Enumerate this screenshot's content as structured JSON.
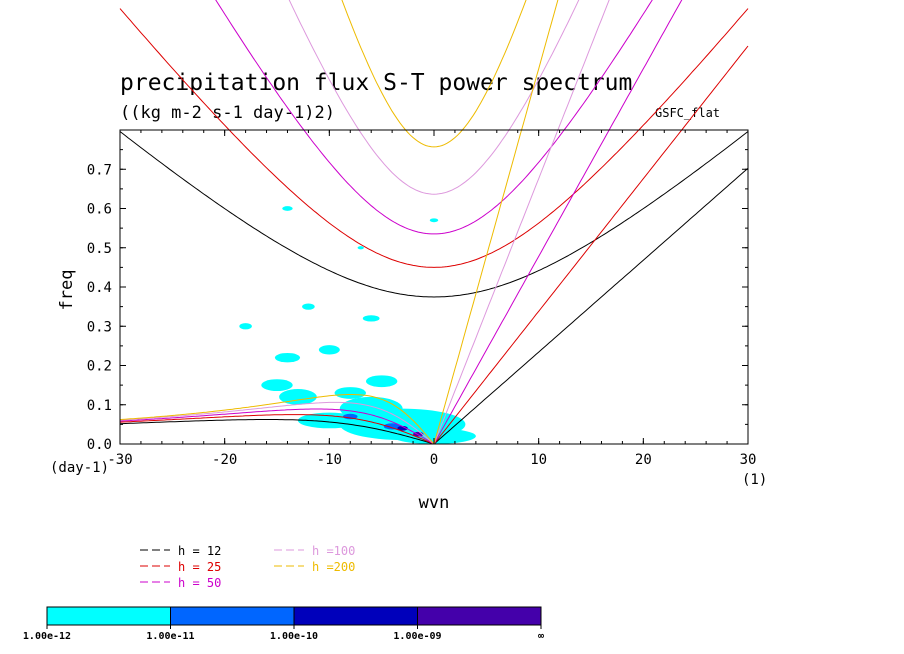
{
  "chart_data": {
    "type": "line",
    "title": "precipitation flux S-T power spectrum",
    "subtitle": "((kg m-2 s-1 day-1)2)",
    "source_label": "GSFC_flat",
    "xlabel": "wvn",
    "ylabel": "freq",
    "x_unit": "(1)",
    "y_unit": "(day-1)",
    "xlim": [
      -30,
      30
    ],
    "ylim": [
      0,
      0.7
    ],
    "x_ticks": [
      -30,
      -20,
      -10,
      0,
      10,
      20,
      30
    ],
    "x_tick_labels": [
      "-30",
      "-20",
      "-10",
      "0",
      "10",
      "20",
      "30"
    ],
    "y_ticks": [
      0,
      0.1,
      0.2,
      0.3,
      0.4,
      0.5,
      0.6,
      0.7
    ],
    "y_tick_labels": [
      "0.0",
      "0.1",
      "0.2",
      "0.3",
      "0.4",
      "0.5",
      "0.6",
      "0.7"
    ],
    "series": [
      {
        "name": "h = 12",
        "h": 12,
        "color": "#000000"
      },
      {
        "name": "h = 25",
        "h": 25,
        "color": "#dd0000"
      },
      {
        "name": "h = 50",
        "h": 50,
        "color": "#cc00cc"
      },
      {
        "name": "h =100",
        "h": 100,
        "color": "#dd99dd"
      },
      {
        "name": "h =200",
        "h": 200,
        "color": "#eebb00"
      }
    ],
    "colorbar": {
      "levels": [
        "1.00e-12",
        "1.00e-11",
        "1.00e-10",
        "1.00e-09",
        "∞"
      ],
      "colors": [
        "#00ffff",
        "#0066ff",
        "#0000bb",
        "#4400aa"
      ]
    },
    "contour_patches": [
      {
        "x": 0,
        "y": 0.02,
        "rx": 4,
        "ry": 0.02,
        "level": 0
      },
      {
        "x": -3,
        "y": 0.05,
        "rx": 6,
        "ry": 0.04,
        "level": 0
      },
      {
        "x": -6,
        "y": 0.09,
        "rx": 3,
        "ry": 0.03,
        "level": 0
      },
      {
        "x": -10,
        "y": 0.06,
        "rx": 3,
        "ry": 0.02,
        "level": 0
      },
      {
        "x": -13,
        "y": 0.12,
        "rx": 1.8,
        "ry": 0.02,
        "level": 0
      },
      {
        "x": -15,
        "y": 0.15,
        "rx": 1.5,
        "ry": 0.015,
        "level": 0
      },
      {
        "x": -5,
        "y": 0.16,
        "rx": 1.5,
        "ry": 0.015,
        "level": 0
      },
      {
        "x": -8,
        "y": 0.13,
        "rx": 1.5,
        "ry": 0.015,
        "level": 0
      },
      {
        "x": -14,
        "y": 0.22,
        "rx": 1.2,
        "ry": 0.012,
        "level": 0
      },
      {
        "x": -10,
        "y": 0.24,
        "rx": 1.0,
        "ry": 0.012,
        "level": 0
      },
      {
        "x": -18,
        "y": 0.3,
        "rx": 0.6,
        "ry": 0.008,
        "level": 0
      },
      {
        "x": -6,
        "y": 0.32,
        "rx": 0.8,
        "ry": 0.008,
        "level": 0
      },
      {
        "x": -12,
        "y": 0.35,
        "rx": 0.6,
        "ry": 0.008,
        "level": 0
      },
      {
        "x": -14,
        "y": 0.6,
        "rx": 0.5,
        "ry": 0.006,
        "level": 0
      },
      {
        "x": 0,
        "y": 0.57,
        "rx": 0.4,
        "ry": 0.005,
        "level": 0
      },
      {
        "x": -7,
        "y": 0.5,
        "rx": 0.3,
        "ry": 0.004,
        "level": 0
      },
      {
        "x": -4,
        "y": 0.045,
        "rx": 0.8,
        "ry": 0.008,
        "level": 1
      },
      {
        "x": -8,
        "y": 0.07,
        "rx": 0.7,
        "ry": 0.007,
        "level": 1
      },
      {
        "x": -3,
        "y": 0.04,
        "rx": 0.5,
        "ry": 0.006,
        "level": 2
      },
      {
        "x": -1.5,
        "y": 0.025,
        "rx": 0.5,
        "ry": 0.006,
        "level": 3
      }
    ]
  }
}
